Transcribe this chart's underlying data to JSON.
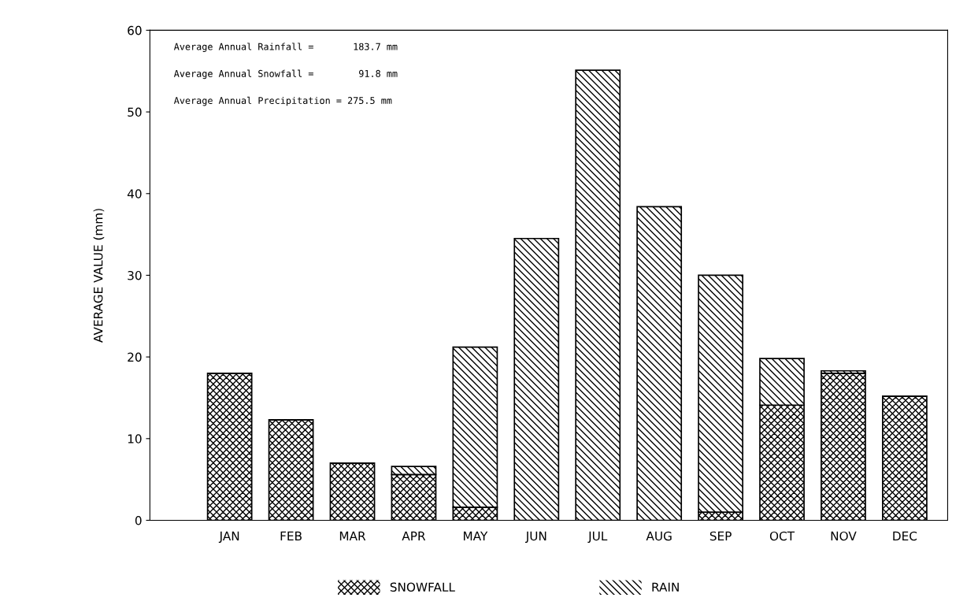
{
  "chart_data": {
    "type": "bar",
    "stacked": true,
    "ylabel": "AVERAGE VALUE (mm)",
    "categories": [
      "JAN",
      "FEB",
      "MAR",
      "APR",
      "MAY",
      "JUN",
      "JUL",
      "AUG",
      "SEP",
      "OCT",
      "NOV",
      "DEC"
    ],
    "series": [
      {
        "name": "SNOWFALL",
        "color": "#000000",
        "values": [
          18.0,
          12.3,
          7.0,
          5.6,
          1.6,
          0,
          0,
          0,
          1.0,
          14.1,
          18.0,
          15.2
        ]
      },
      {
        "name": "RAIN",
        "color": "#000000",
        "values": [
          0,
          0,
          0,
          1.0,
          19.6,
          34.5,
          55.1,
          38.4,
          29.0,
          5.7,
          0.3,
          0
        ]
      }
    ],
    "ylim": [
      0,
      60
    ],
    "yticks": [
      0,
      10,
      20,
      30,
      40,
      50,
      60
    ],
    "grid": false,
    "legend": "bottom",
    "annotations": [
      "Average Annual Rainfall =       183.7 mm",
      "Average Annual Snowfall =        91.8 mm",
      "Average Annual Precipitation = 275.5 mm"
    ]
  }
}
